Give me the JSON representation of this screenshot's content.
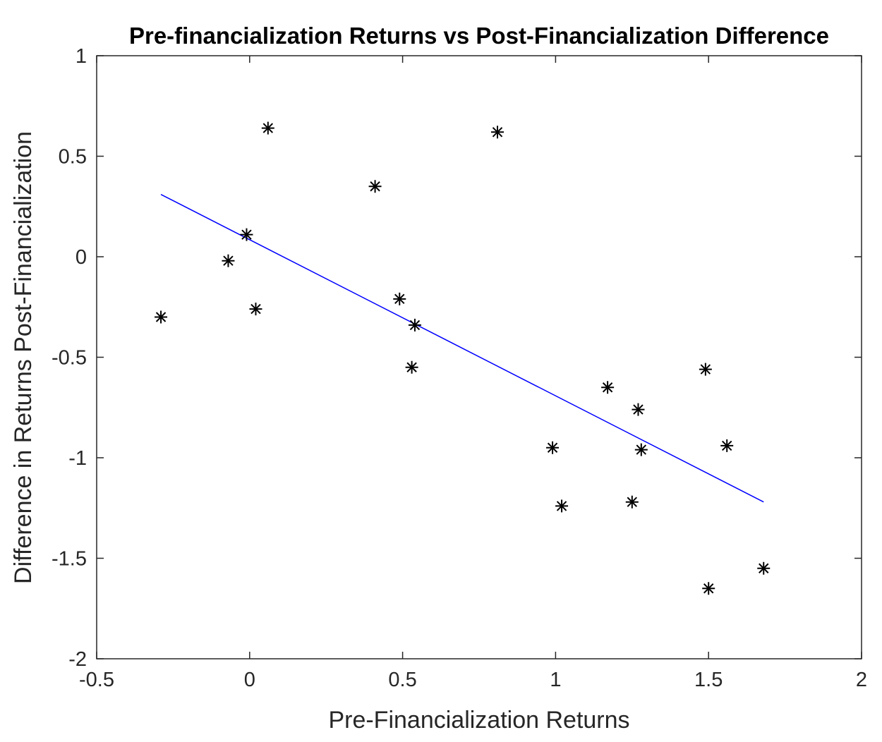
{
  "chart_data": {
    "type": "scatter",
    "title": "Pre-financialization Returns vs Post-Financialization Difference",
    "xlabel": "Pre-Financialization Returns",
    "ylabel": "Difference in Returns Post-Financialization",
    "xlim": [
      -0.5,
      2
    ],
    "ylim": [
      -2,
      1
    ],
    "xticks": [
      -0.5,
      0,
      0.5,
      1,
      1.5,
      2
    ],
    "yticks": [
      -2,
      -1.5,
      -1,
      -0.5,
      0,
      0.5,
      1
    ],
    "xtick_labels": [
      "-0.5",
      "0",
      "0.5",
      "1",
      "1.5",
      "2"
    ],
    "ytick_labels": [
      "-2",
      "-1.5",
      "-1",
      "-0.5",
      "0",
      "0.5",
      "1"
    ],
    "grid": false,
    "series": [
      {
        "marker": "asterisk",
        "color": "#000000",
        "points": [
          {
            "x": -0.29,
            "y": -0.3
          },
          {
            "x": -0.07,
            "y": -0.02
          },
          {
            "x": -0.01,
            "y": 0.11
          },
          {
            "x": 0.02,
            "y": -0.26
          },
          {
            "x": 0.06,
            "y": 0.64
          },
          {
            "x": 0.41,
            "y": 0.35
          },
          {
            "x": 0.49,
            "y": -0.21
          },
          {
            "x": 0.53,
            "y": -0.55
          },
          {
            "x": 0.54,
            "y": -0.34
          },
          {
            "x": 0.81,
            "y": 0.62
          },
          {
            "x": 0.99,
            "y": -0.95
          },
          {
            "x": 1.02,
            "y": -1.24
          },
          {
            "x": 1.17,
            "y": -0.65
          },
          {
            "x": 1.25,
            "y": -1.22
          },
          {
            "x": 1.27,
            "y": -0.76
          },
          {
            "x": 1.28,
            "y": -0.96
          },
          {
            "x": 1.49,
            "y": -0.56
          },
          {
            "x": 1.5,
            "y": -1.65
          },
          {
            "x": 1.56,
            "y": -0.94
          },
          {
            "x": 1.68,
            "y": -1.55
          }
        ]
      },
      {
        "type": "line",
        "color": "#0000ff",
        "points": [
          {
            "x": -0.29,
            "y": 0.31
          },
          {
            "x": 1.68,
            "y": -1.22
          }
        ]
      }
    ]
  }
}
